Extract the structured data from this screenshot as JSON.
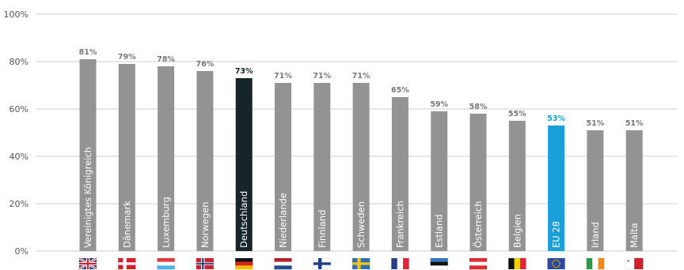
{
  "chart_data": {
    "type": "bar",
    "title": "",
    "xlabel": "",
    "ylabel": "",
    "ylim": [
      0,
      100
    ],
    "y_ticks": [
      "0%",
      "20%",
      "40%",
      "60%",
      "80%",
      "100%"
    ],
    "y_tick_values": [
      0,
      20,
      40,
      60,
      80,
      100
    ],
    "grid": true,
    "categories": [
      "Vereinigtes Königreich",
      "Dänemark",
      "Luxemburg",
      "Norwegen",
      "Deutschland",
      "Niederlande",
      "Finnland",
      "Schweden",
      "Frankreich",
      "Estland",
      "Österreich",
      "Belgien",
      "EU 28",
      "Irland",
      "Malta"
    ],
    "values": [
      81,
      79,
      78,
      76,
      73,
      71,
      71,
      71,
      65,
      59,
      58,
      55,
      53,
      51,
      51
    ],
    "value_labels": [
      "81%",
      "79%",
      "78%",
      "76%",
      "73%",
      "71%",
      "71%",
      "71%",
      "65%",
      "59%",
      "58%",
      "55%",
      "53%",
      "51%",
      "51%"
    ],
    "flags": [
      "flag-uk",
      "flag-denmark",
      "flag-luxembourg",
      "flag-norway",
      "flag-germany",
      "flag-netherlands",
      "flag-finland",
      "flag-sweden",
      "flag-france",
      "flag-estonia",
      "flag-austria",
      "flag-belgium",
      "flag-eu",
      "flag-ireland",
      "flag-malta"
    ],
    "colors": {
      "default_bar": "#939393",
      "highlight_bar": "#17252b",
      "eu_bar": "#1aa0d8",
      "default_label": "#777777",
      "highlight_label": "#17252b",
      "eu_label": "#1aa0d8",
      "grid": "#cfcfcf"
    },
    "highlight": {
      "Deutschland": "highlight",
      "EU 28": "eu"
    }
  }
}
